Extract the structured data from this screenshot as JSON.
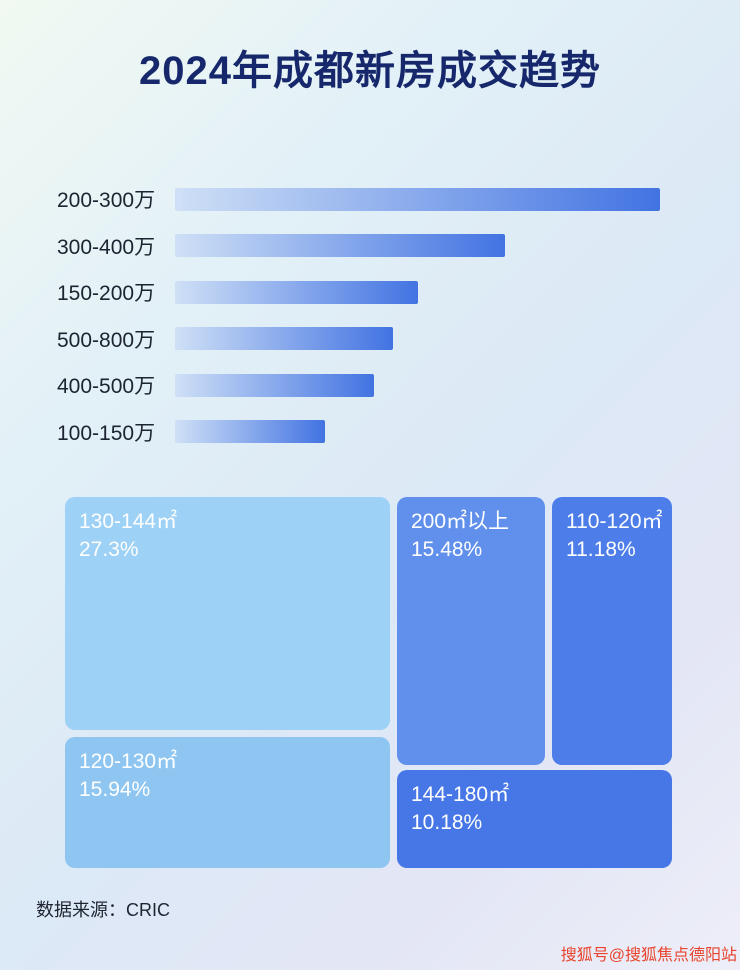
{
  "page": {
    "title": "2024年成都新房成交趋势",
    "source": "数据来源：CRIC",
    "watermark": "搜狐号@搜狐焦点德阳站"
  },
  "chart_data": [
    {
      "type": "bar",
      "orientation": "horizontal",
      "title": "2024年成都新房成交趋势",
      "categories": [
        "200-300万",
        "300-400万",
        "150-200万",
        "500-800万",
        "400-500万",
        "100-150万"
      ],
      "values": [
        100,
        68,
        50,
        45,
        41,
        31
      ],
      "value_basis": "relative length, longest bar = 100 (no numeric labels shown)",
      "bar_gradient": [
        "#cfe0f6",
        "#4273e2"
      ],
      "grid": false,
      "legend": false
    },
    {
      "type": "treemap",
      "items": [
        {
          "label": "130-144㎡",
          "value": 27.3,
          "value_text": "27.3%",
          "color": "#9dd1f5"
        },
        {
          "label": "200㎡以上",
          "value": 15.48,
          "value_text": "15.48%",
          "color": "#6090ec"
        },
        {
          "label": "110-120㎡",
          "value": 11.18,
          "value_text": "11.18%",
          "color": "#4d7de9"
        },
        {
          "label": "120-130㎡",
          "value": 15.94,
          "value_text": "15.94%",
          "color": "#8ec6f1"
        },
        {
          "label": "144-180㎡",
          "value": 10.18,
          "value_text": "10.18%",
          "color": "#4777e6"
        }
      ]
    }
  ]
}
